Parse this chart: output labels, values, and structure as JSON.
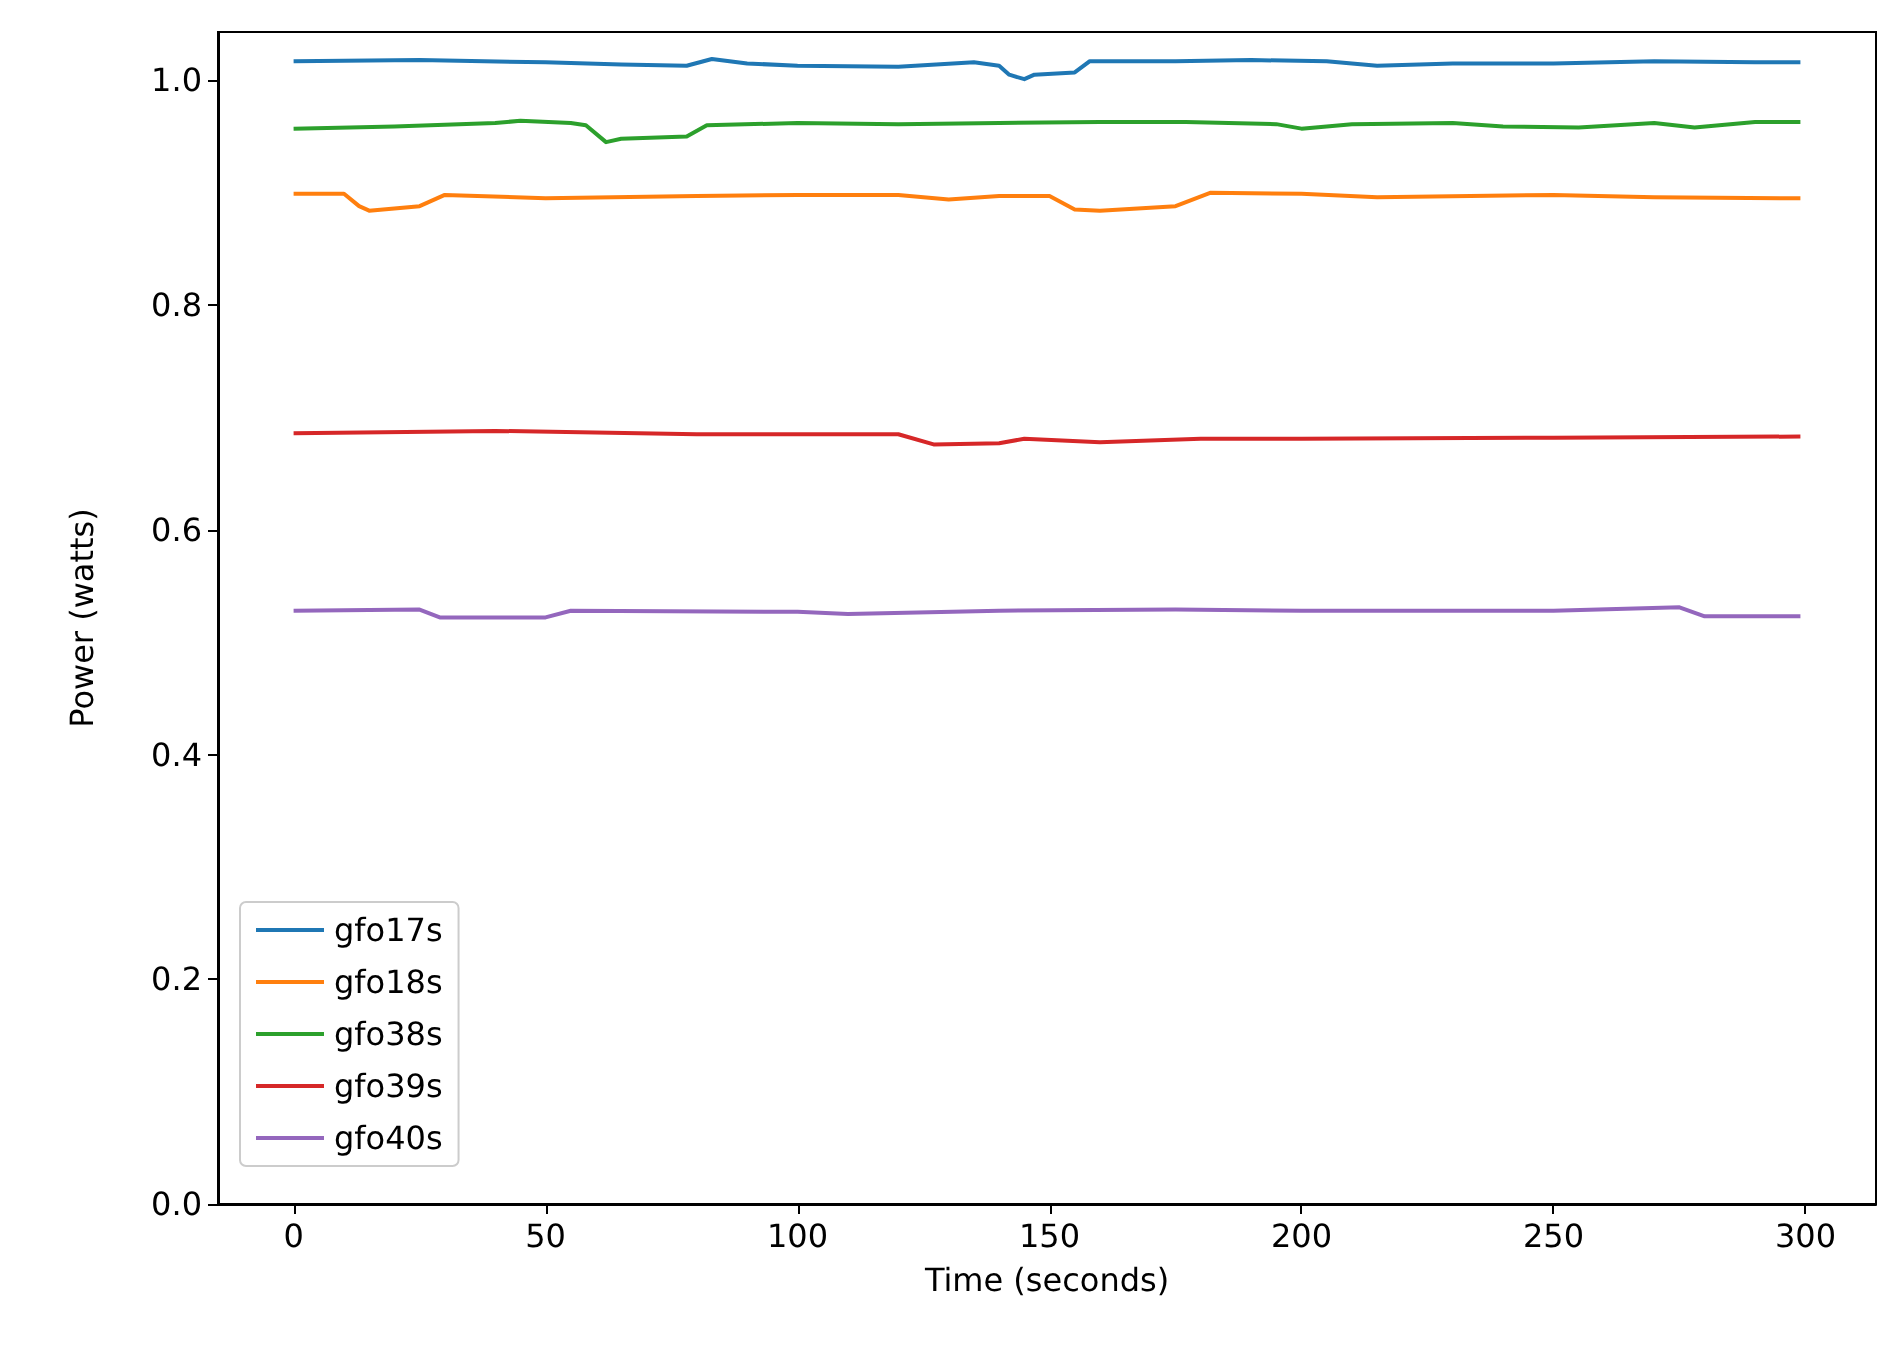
{
  "chart_data": {
    "type": "line",
    "xlabel": "Time (seconds)",
    "ylabel": "Power (watts)",
    "xlim": [
      -15,
      314
    ],
    "ylim": [
      0,
      1.043
    ],
    "xticks": [
      0,
      50,
      100,
      150,
      200,
      250,
      300
    ],
    "yticks": [
      {
        "value": 0,
        "label": "0.0"
      },
      0.2,
      0.4,
      0.6,
      0.8,
      {
        "value": 1,
        "label": "1.0"
      }
    ],
    "grid": false,
    "legend": "bottom left",
    "marker": "none",
    "line_style": "solid",
    "series": [
      {
        "name": "gfo17s",
        "color": "#1f77b4",
        "x": [
          0,
          25,
          50,
          65,
          78,
          83,
          90,
          100,
          120,
          135,
          140,
          142,
          145,
          147,
          155,
          158,
          175,
          190,
          205,
          215,
          230,
          250,
          270,
          290,
          299
        ],
        "values": [
          1.017,
          1.018,
          1.016,
          1.014,
          1.013,
          1.019,
          1.015,
          1.013,
          1.012,
          1.016,
          1.013,
          1.005,
          1.001,
          1.005,
          1.007,
          1.017,
          1.017,
          1.018,
          1.017,
          1.013,
          1.015,
          1.015,
          1.017,
          1.016,
          1.016
        ]
      },
      {
        "name": "gfo18s",
        "color": "#ff7f0e",
        "x": [
          0,
          10,
          13,
          15,
          20,
          25,
          30,
          50,
          80,
          100,
          120,
          130,
          140,
          150,
          155,
          160,
          175,
          182,
          200,
          215,
          250,
          270,
          299
        ],
        "values": [
          0.899,
          0.899,
          0.888,
          0.884,
          0.886,
          0.888,
          0.898,
          0.895,
          0.897,
          0.898,
          0.898,
          0.894,
          0.897,
          0.897,
          0.885,
          0.884,
          0.888,
          0.9,
          0.899,
          0.896,
          0.898,
          0.896,
          0.895
        ]
      },
      {
        "name": "gfo38s",
        "color": "#2ca02c",
        "x": [
          0,
          20,
          40,
          45,
          55,
          58,
          62,
          65,
          78,
          82,
          100,
          120,
          140,
          160,
          177,
          195,
          200,
          210,
          230,
          240,
          255,
          270,
          278,
          290,
          299
        ],
        "values": [
          0.957,
          0.959,
          0.962,
          0.964,
          0.962,
          0.96,
          0.945,
          0.948,
          0.95,
          0.96,
          0.962,
          0.961,
          0.962,
          0.963,
          0.963,
          0.961,
          0.957,
          0.961,
          0.962,
          0.959,
          0.958,
          0.962,
          0.958,
          0.963,
          0.963
        ]
      },
      {
        "name": "gfo39s",
        "color": "#d62728",
        "x": [
          0,
          40,
          80,
          100,
          120,
          127,
          140,
          145,
          160,
          180,
          200,
          250,
          299
        ],
        "values": [
          0.686,
          0.688,
          0.685,
          0.685,
          0.685,
          0.676,
          0.677,
          0.681,
          0.678,
          0.681,
          0.681,
          0.682,
          0.683
        ]
      },
      {
        "name": "gfo40s",
        "color": "#9467bd",
        "x": [
          0,
          25,
          29,
          50,
          55,
          100,
          110,
          140,
          175,
          200,
          250,
          275,
          280,
          299
        ],
        "values": [
          0.528,
          0.529,
          0.522,
          0.522,
          0.528,
          0.527,
          0.525,
          0.528,
          0.529,
          0.528,
          0.528,
          0.531,
          0.523,
          0.523
        ]
      }
    ]
  }
}
